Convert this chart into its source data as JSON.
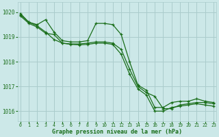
{
  "xlabel": "Graphe pression niveau de la mer (hPa)",
  "bg_color": "#cce8e8",
  "grid_color": "#aacccc",
  "line_color": "#1a6e1a",
  "ylim": [
    1015.6,
    1020.4
  ],
  "xlim": [
    -0.3,
    23.3
  ],
  "yticks": [
    1016,
    1017,
    1018,
    1019,
    1020
  ],
  "xticks": [
    0,
    1,
    2,
    3,
    4,
    5,
    6,
    7,
    8,
    9,
    10,
    11,
    12,
    13,
    14,
    15,
    16,
    17,
    18,
    19,
    20,
    21,
    22,
    23
  ],
  "line1": [
    1019.95,
    1019.6,
    1019.5,
    1019.7,
    1019.2,
    1018.85,
    1018.8,
    1018.8,
    1018.85,
    1019.55,
    1019.55,
    1019.5,
    1019.1,
    1018.0,
    1017.05,
    1016.85,
    1016.15,
    1016.15,
    1016.35,
    1016.4,
    1016.4,
    1016.5,
    1016.4,
    1016.35
  ],
  "line2": [
    1019.9,
    1019.6,
    1019.45,
    1019.2,
    1018.9,
    1018.75,
    1018.72,
    1018.72,
    1018.75,
    1018.8,
    1018.8,
    1018.75,
    1018.5,
    1017.7,
    1017.0,
    1016.75,
    1016.6,
    1016.1,
    1016.1,
    1016.25,
    1016.3,
    1016.35,
    1016.35,
    1016.3
  ],
  "line3": [
    1019.85,
    1019.55,
    1019.4,
    1019.15,
    1019.1,
    1018.75,
    1018.7,
    1018.68,
    1018.7,
    1018.75,
    1018.75,
    1018.7,
    1018.3,
    1017.5,
    1016.9,
    1016.65,
    1016.0,
    1016.0,
    1016.15,
    1016.2,
    1016.25,
    1016.3,
    1016.25,
    1016.2
  ]
}
